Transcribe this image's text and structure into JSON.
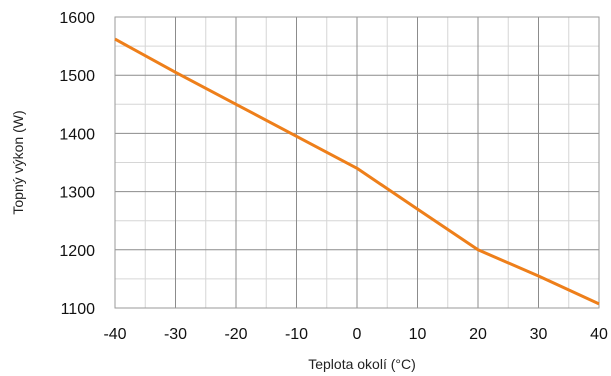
{
  "chart_data": {
    "type": "line",
    "title": "",
    "xlabel": "Teplota okolí (°C)",
    "ylabel": "Topný výkon (W)",
    "xlim": [
      -40,
      40
    ],
    "ylim": [
      1100,
      1600
    ],
    "x_ticks": [
      -40,
      -30,
      -20,
      -10,
      0,
      10,
      20,
      30,
      40
    ],
    "x_tick_labels": [
      "-40",
      "-30",
      "-20",
      "-10",
      "0",
      "10",
      "20",
      "30",
      "40"
    ],
    "y_ticks": [
      1100,
      1200,
      1300,
      1400,
      1500,
      1600
    ],
    "y_tick_labels": [
      "1100",
      "1200",
      "1300",
      "1400",
      "1500",
      "1600"
    ],
    "grid": true,
    "series": [
      {
        "color": "#ee7f1a",
        "x": [
          -40,
          -30,
          -20,
          -10,
          0,
          10,
          20,
          30,
          40
        ],
        "y": [
          1562,
          1505,
          1450,
          1395,
          1340,
          1270,
          1200,
          1155,
          1107
        ]
      }
    ]
  }
}
